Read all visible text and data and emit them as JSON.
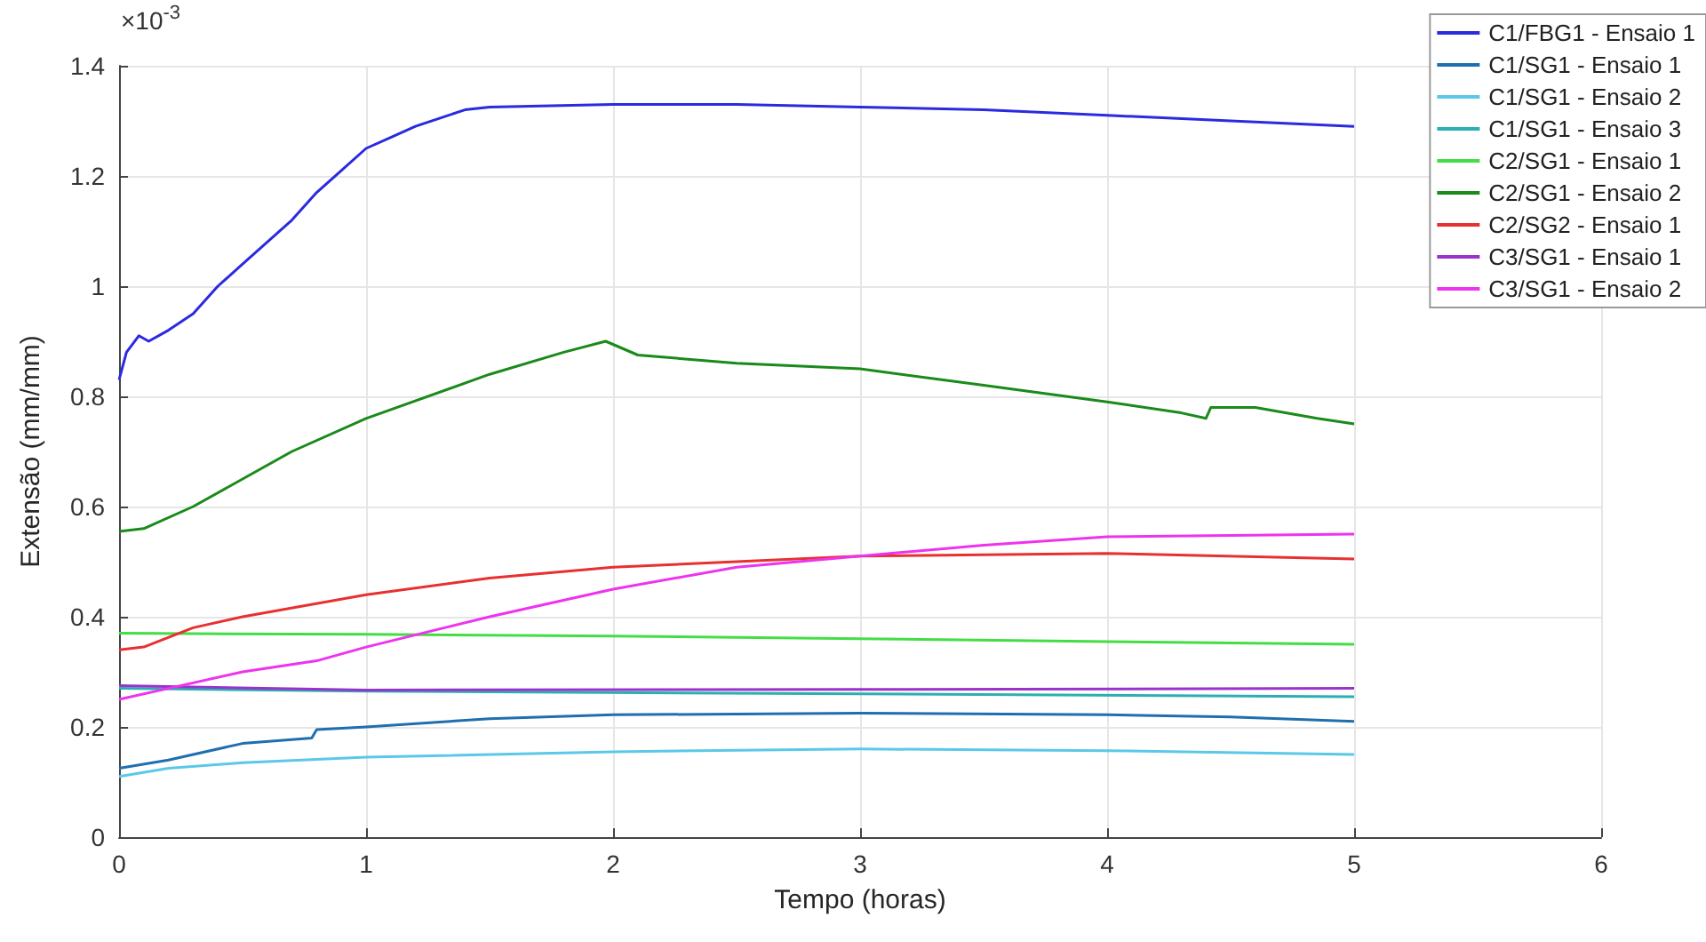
{
  "chart_data": {
    "type": "line",
    "xlabel": "Tempo (horas)",
    "ylabel": "Extensão (mm/mm)",
    "annotations": [
      "×10$^{-3}$"
    ],
    "xlim": [
      0,
      6
    ],
    "xticks": [
      0,
      1,
      2,
      3,
      4,
      5,
      6
    ],
    "ylim": [
      0,
      1.4
    ],
    "yticks": [
      0,
      0.2,
      0.4,
      0.6,
      0.8,
      1,
      1.2,
      1.4
    ],
    "grid": true,
    "legend": "top right",
    "marker": "none",
    "line_style": "solid",
    "series": [
      {
        "name": "C1/FBG1 - Ensaio 1",
        "color": "#2a2ae0",
        "x": [
          0,
          0.03,
          0.08,
          0.12,
          0.2,
          0.3,
          0.4,
          0.5,
          0.6,
          0.7,
          0.8,
          0.9,
          1,
          1.1,
          1.2,
          1.3,
          1.4,
          1.5,
          2,
          2.5,
          3,
          3.5,
          4,
          4.5,
          5
        ],
        "values": [
          0.83,
          0.88,
          0.91,
          0.9,
          0.92,
          0.95,
          1,
          1.04,
          1.08,
          1.12,
          1.17,
          1.21,
          1.25,
          1.27,
          1.29,
          1.305,
          1.32,
          1.325,
          1.33,
          1.33,
          1.325,
          1.32,
          1.31,
          1.3,
          1.29
        ]
      },
      {
        "name": "C1/SG1 - Ensaio 1",
        "color": "#1f6fb0",
        "x": [
          0,
          0.2,
          0.5,
          0.78,
          0.8,
          1,
          1.5,
          2,
          3,
          4,
          4.5,
          5
        ],
        "values": [
          0.125,
          0.14,
          0.17,
          0.18,
          0.195,
          0.2,
          0.215,
          0.222,
          0.225,
          0.222,
          0.218,
          0.21
        ]
      },
      {
        "name": "C1/SG1 - Ensaio 2",
        "color": "#5bc8e8",
        "x": [
          0,
          0.2,
          0.5,
          1,
          2,
          3,
          4,
          5
        ],
        "values": [
          0.11,
          0.125,
          0.135,
          0.145,
          0.155,
          0.16,
          0.157,
          0.15
        ]
      },
      {
        "name": "C1/SG1 - Ensaio 3",
        "color": "#2ab0b0",
        "x": [
          0,
          1,
          3,
          5
        ],
        "values": [
          0.27,
          0.265,
          0.26,
          0.255
        ]
      },
      {
        "name": "C2/SG1 - Ensaio 1",
        "color": "#44dd44",
        "x": [
          0,
          1,
          2,
          3,
          4,
          5
        ],
        "values": [
          0.37,
          0.368,
          0.365,
          0.36,
          0.355,
          0.35
        ]
      },
      {
        "name": "C2/SG1 - Ensaio 2",
        "color": "#1a8a1a",
        "x": [
          0,
          0.1,
          0.3,
          0.5,
          0.7,
          1,
          1.5,
          1.8,
          1.97,
          2.1,
          2.5,
          3,
          3.5,
          4,
          4.3,
          4.4,
          4.42,
          4.6,
          4.85,
          5
        ],
        "values": [
          0.555,
          0.56,
          0.6,
          0.65,
          0.7,
          0.76,
          0.84,
          0.88,
          0.9,
          0.875,
          0.86,
          0.85,
          0.82,
          0.79,
          0.77,
          0.76,
          0.78,
          0.78,
          0.76,
          0.75
        ]
      },
      {
        "name": "C2/SG2 - Ensaio 1",
        "color": "#e83030",
        "x": [
          0,
          0.1,
          0.3,
          0.5,
          1,
          1.5,
          2,
          2.5,
          3,
          4,
          5
        ],
        "values": [
          0.34,
          0.345,
          0.38,
          0.4,
          0.44,
          0.47,
          0.49,
          0.5,
          0.51,
          0.515,
          0.505
        ]
      },
      {
        "name": "C3/SG1 - Ensaio 1",
        "color": "#9933cc",
        "x": [
          0,
          1,
          3,
          5
        ],
        "values": [
          0.275,
          0.267,
          0.268,
          0.27
        ]
      },
      {
        "name": "C3/SG1 - Ensaio 2",
        "color": "#ee33ee",
        "x": [
          0,
          0.2,
          0.5,
          0.8,
          1,
          1.5,
          2,
          2.5,
          3,
          3.5,
          4,
          5
        ],
        "values": [
          0.25,
          0.27,
          0.3,
          0.32,
          0.345,
          0.4,
          0.45,
          0.49,
          0.51,
          0.53,
          0.545,
          0.55
        ]
      }
    ]
  }
}
